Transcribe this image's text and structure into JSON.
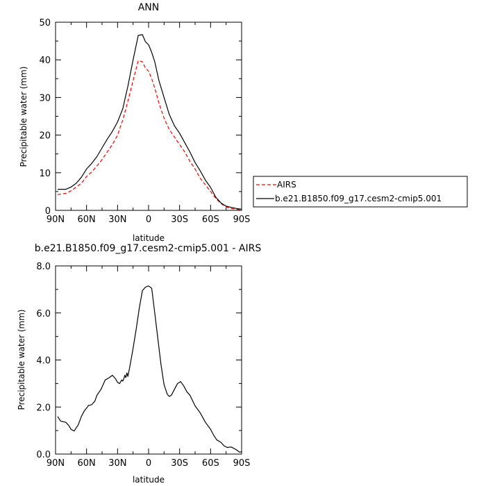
{
  "chart_data": [
    {
      "type": "line",
      "title": "ANN",
      "xlabel": "latitude",
      "ylabel": "Precipitable water (mm)",
      "xlim": [
        90,
        -90
      ],
      "ylim": [
        0,
        50
      ],
      "xticks": [
        90,
        60,
        30,
        0,
        -30,
        -60,
        -90
      ],
      "xtick_labels": [
        "90N",
        "60N",
        "30N",
        "0",
        "30S",
        "60S",
        "90S"
      ],
      "yticks": [
        0,
        10,
        20,
        30,
        40,
        50
      ],
      "ytick_labels": [
        "0",
        "10",
        "20",
        "30",
        "40",
        "50"
      ],
      "grid": false,
      "legend": "outside-right",
      "series": [
        {
          "name": "AIRS",
          "color": "#ff0000",
          "dash": "dashed",
          "x": [
            88,
            80,
            75,
            70,
            65,
            60,
            55,
            50,
            45,
            40,
            35,
            30,
            25,
            20,
            15,
            10,
            6,
            3,
            0,
            -3,
            -6,
            -10,
            -15,
            -20,
            -25,
            -30,
            -35,
            -40,
            -45,
            -50,
            -55,
            -60,
            -65,
            -70,
            -75,
            -80,
            -85,
            -90
          ],
          "y": [
            4.2,
            4.5,
            5.2,
            6.2,
            7.2,
            9.0,
            10.2,
            11.8,
            13.5,
            15.5,
            17.5,
            20.0,
            24.0,
            29.0,
            34.5,
            39.8,
            39.5,
            37.8,
            37.0,
            35.0,
            32.5,
            28.5,
            24.5,
            21.5,
            19.5,
            17.5,
            15.5,
            13.0,
            11.0,
            8.5,
            6.8,
            5.0,
            3.2,
            1.8,
            0.9,
            0.5,
            0.3,
            0.1
          ]
        },
        {
          "name": "b.e21.B1850.f09_g17.cesm2-cmip5.001",
          "color": "#000000",
          "dash": "solid",
          "x": [
            88,
            80,
            75,
            70,
            65,
            60,
            55,
            50,
            45,
            40,
            35,
            30,
            25,
            20,
            15,
            10,
            6,
            3,
            0,
            -3,
            -6,
            -10,
            -15,
            -20,
            -25,
            -30,
            -35,
            -40,
            -45,
            -50,
            -55,
            -60,
            -65,
            -70,
            -75,
            -80,
            -85,
            -90
          ],
          "y": [
            5.6,
            5.6,
            6.2,
            7.2,
            8.8,
            11.0,
            12.5,
            14.3,
            16.6,
            18.9,
            21.0,
            23.5,
            27.0,
            33.0,
            40.0,
            46.5,
            46.7,
            44.8,
            44.0,
            42.0,
            39.5,
            34.5,
            30.0,
            25.5,
            22.5,
            20.5,
            18.0,
            15.5,
            12.7,
            10.5,
            8.0,
            6.1,
            3.5,
            2.0,
            1.1,
            0.8,
            0.5,
            0.3
          ]
        }
      ]
    },
    {
      "type": "line",
      "title": "b.e21.B1850.f09_g17.cesm2-cmip5.001 - AIRS",
      "xlabel": "latitude",
      "ylabel": "Precipitable water (mm)",
      "xlim": [
        90,
        -90
      ],
      "ylim": [
        0,
        8
      ],
      "xticks": [
        90,
        60,
        30,
        0,
        -30,
        -60,
        -90
      ],
      "xtick_labels": [
        "90N",
        "60N",
        "30N",
        "0",
        "30S",
        "60S",
        "90S"
      ],
      "yticks": [
        0,
        2,
        4,
        6,
        8
      ],
      "ytick_labels": [
        "0.0",
        "2.0",
        "4.0",
        "6.0",
        "8.0"
      ],
      "grid": false,
      "series": [
        {
          "color": "#000000",
          "dash": "solid",
          "x": [
            88,
            85,
            80,
            77,
            75,
            72,
            68,
            65,
            62,
            60,
            58,
            55,
            52,
            50,
            46,
            42,
            38,
            35,
            32,
            30,
            28,
            26,
            25,
            24,
            23,
            22,
            21,
            20,
            18,
            15,
            12,
            9,
            6,
            3,
            0,
            -3,
            -6,
            -9,
            -12,
            -15,
            -18,
            -20,
            -22,
            -25,
            -28,
            -31,
            -34,
            -37,
            -40,
            -45,
            -50,
            -55,
            -60,
            -63,
            -66,
            -70,
            -73,
            -76,
            -80,
            -85,
            -88,
            -90
          ],
          "y": [
            1.6,
            1.4,
            1.35,
            1.2,
            1.05,
            0.98,
            1.25,
            1.6,
            1.85,
            1.95,
            2.07,
            2.1,
            2.25,
            2.5,
            2.75,
            3.15,
            3.25,
            3.35,
            3.2,
            3.05,
            3.0,
            3.15,
            3.1,
            3.2,
            3.35,
            3.25,
            3.45,
            3.3,
            3.75,
            4.5,
            5.3,
            6.2,
            6.95,
            7.1,
            7.15,
            7.05,
            6.0,
            4.9,
            3.8,
            2.95,
            2.55,
            2.45,
            2.5,
            2.75,
            3.0,
            3.08,
            2.9,
            2.65,
            2.5,
            2.05,
            1.75,
            1.35,
            1.05,
            0.8,
            0.6,
            0.5,
            0.35,
            0.28,
            0.3,
            0.18,
            0.08,
            0.1
          ]
        }
      ]
    }
  ]
}
